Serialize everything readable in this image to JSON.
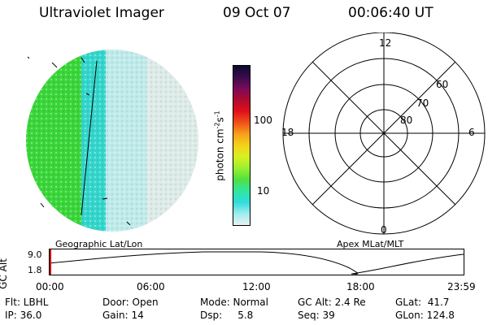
{
  "header": {
    "instrument": "Ultraviolet Imager",
    "date": "09 Oct 07",
    "time": "00:06:40 UT"
  },
  "colorbar": {
    "label": "photon cm",
    "label_sup1": "-2",
    "label_mid": "s",
    "label_sup2": "-1",
    "ticks": [
      "100",
      "10"
    ],
    "colors": [
      "#0b0b2e",
      "#3a0b4e",
      "#7a0a5a",
      "#b00a2e",
      "#e0101a",
      "#f0501a",
      "#f5a01a",
      "#f5d21a",
      "#d8f020",
      "#9af030",
      "#50e040",
      "#30e6a0",
      "#30dcdc",
      "#a0ecec",
      "#e6f2f2"
    ]
  },
  "polar": {
    "mlt_labels": {
      "top": "12",
      "left": "18",
      "right": "6",
      "bottom": "0"
    },
    "lat_labels": [
      "60",
      "70",
      "80"
    ],
    "colors": {
      "grid": "#000000"
    }
  },
  "disk": {
    "colors": {
      "dayside": "#3ad63a",
      "mid": "#34d6cc",
      "light": "#bfeaea",
      "night": "#dcebe8"
    }
  },
  "timeline": {
    "axis_title": "GC Alt",
    "y_max_label": "9.0",
    "y_min_label": "1.8",
    "left_caption": "Geographic Lat/Lon",
    "right_caption": "Apex MLat/MLT",
    "ticks": [
      "00:00",
      "06:00",
      "12:00",
      "18:00",
      "23:59"
    ],
    "marker_color": "#e00000"
  },
  "info": {
    "row1": {
      "flt": "Flt: LBHL",
      "door": "Door: Open",
      "mode": "Mode: Normal",
      "gcalt": "GC Alt: 2.4 Re",
      "glat": "GLat:  41.7"
    },
    "row2": {
      "ip": "IP: 36.0",
      "gain": "Gain: 14",
      "dsp": "Dsp:     5.8",
      "seq": "Seq: 39",
      "glon": "GLon: 124.8"
    }
  }
}
